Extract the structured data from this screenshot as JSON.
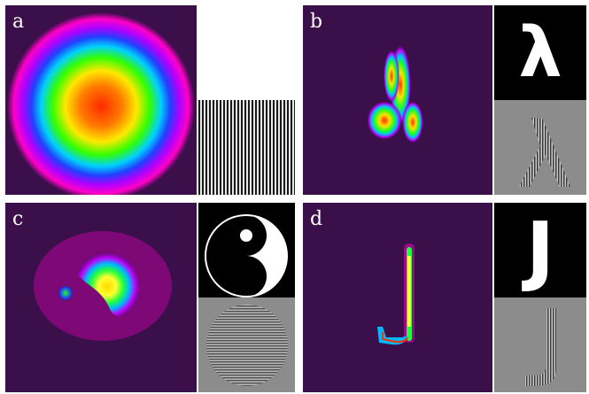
{
  "panels": [
    {
      "id": "a",
      "label": "a",
      "target_glyph": "",
      "side_top": "blank",
      "side_bottom": "vertical-grating"
    },
    {
      "id": "b",
      "label": "b",
      "target_glyph": "λ",
      "side_top": "lambda-glyph",
      "side_bottom": "lambda-hologram"
    },
    {
      "id": "c",
      "label": "c",
      "target_glyph": "",
      "side_top": "yin-yang-icon",
      "side_bottom": "yin-yang-hologram"
    },
    {
      "id": "d",
      "label": "d",
      "target_glyph": "J",
      "side_top": "j-glyph",
      "side_bottom": "j-hologram"
    }
  ],
  "colors": {
    "background": "#3a0f4a",
    "gray": "#8c8c8c",
    "black": "#000000",
    "white": "#ffffff"
  }
}
